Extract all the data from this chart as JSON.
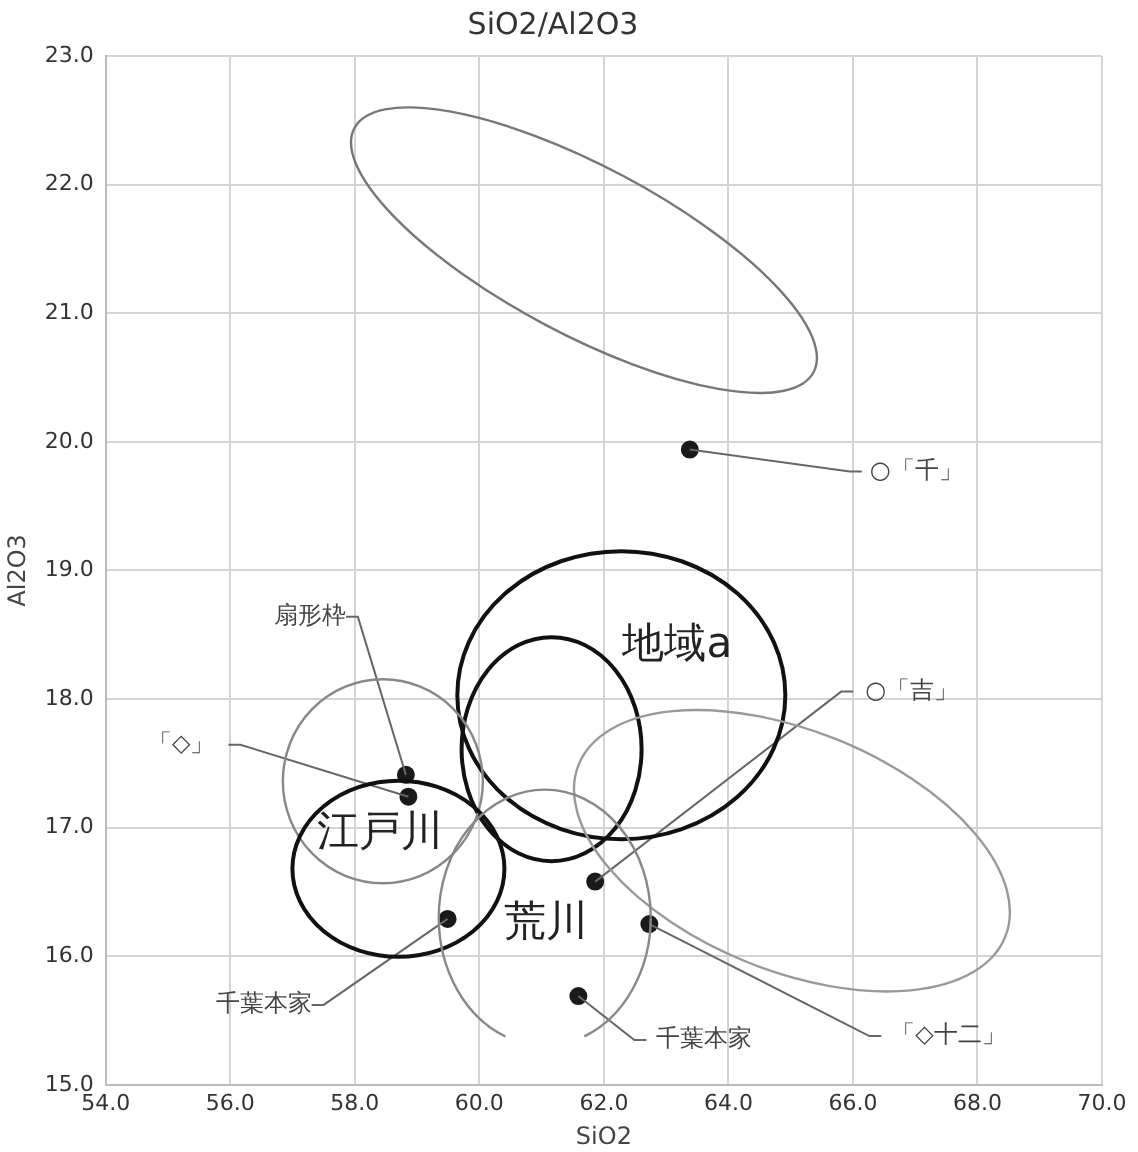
{
  "chart_data": {
    "type": "scatter",
    "title": "SiO2/Al2O3",
    "xlabel": "SiO2",
    "ylabel": "Al2O3",
    "x": [
      63.38,
      58.82,
      58.86,
      61.86,
      62.73,
      59.49,
      61.59
    ],
    "series": [
      {
        "color": "#1a1a1a",
        "values": [
          19.94,
          17.41,
          17.24,
          16.58,
          16.25,
          16.29,
          15.69
        ]
      }
    ],
    "marker": "circle",
    "grid": true,
    "legend": false,
    "xlim": [
      54,
      70
    ],
    "xticks": [
      {
        "value": 54,
        "label": "54.0"
      },
      {
        "value": 56,
        "label": "56.0"
      },
      {
        "value": 58,
        "label": "58.0"
      },
      {
        "value": 60,
        "label": "60.0"
      },
      {
        "value": 62,
        "label": "62.0"
      },
      {
        "value": 64,
        "label": "64.0"
      },
      {
        "value": 66,
        "label": "66.0"
      },
      {
        "value": 68,
        "label": "68.0"
      },
      {
        "value": 70,
        "label": "70.0"
      }
    ],
    "ylim": [
      15,
      23
    ],
    "yticks": [
      {
        "value": 15,
        "label": "15.0"
      },
      {
        "value": 16,
        "label": "16.0"
      },
      {
        "value": 17,
        "label": "17.0"
      },
      {
        "value": 18,
        "label": "18.0"
      },
      {
        "value": 19,
        "label": "19.0"
      },
      {
        "value": 20,
        "label": "20.0"
      },
      {
        "value": 21,
        "label": "21.0"
      },
      {
        "value": 22,
        "label": "22.0"
      },
      {
        "value": 23,
        "label": "23.0"
      }
    ],
    "annotations": [
      {
        "text": "○「千」",
        "x": 63.38,
        "y": 19.94
      },
      {
        "text": "扇形枠",
        "x": 58.82,
        "y": 17.41
      },
      {
        "text": "「◇」",
        "x": 58.86,
        "y": 17.24
      },
      {
        "text": "○「吉」",
        "x": 61.86,
        "y": 16.58
      },
      {
        "text": "「◇十二」",
        "x": 62.73,
        "y": 16.25
      },
      {
        "text": "千葉本家",
        "x": 59.49,
        "y": 16.29
      },
      {
        "text": "千葉本家",
        "x": 61.59,
        "y": 15.69
      },
      "地域a",
      "江戸川",
      "荒川"
    ]
  }
}
